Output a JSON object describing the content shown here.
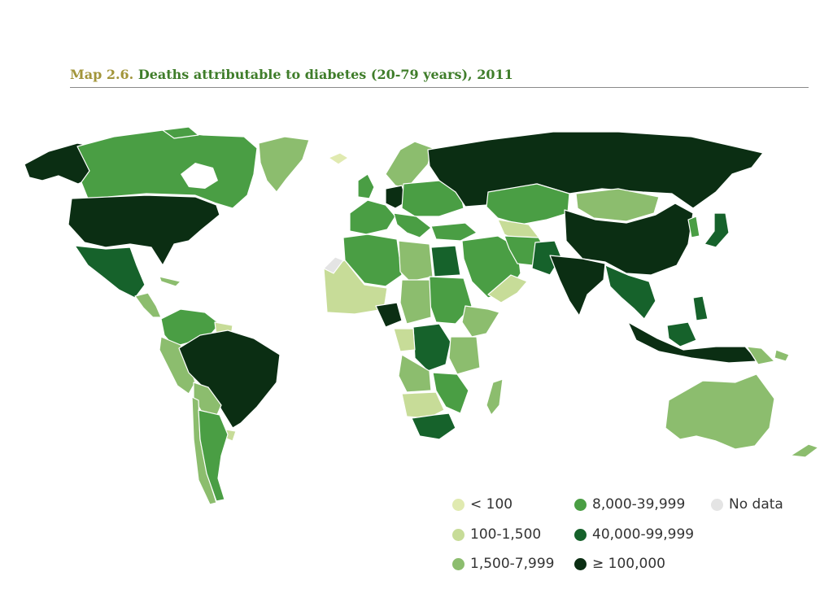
{
  "title": {
    "prefix": "Map 2.6.",
    "text": "Deaths attributable to diabetes (20-79 years), 2011"
  },
  "colors": {
    "lt100": "#e0eab0",
    "c100_1500": "#c7dc98",
    "c1500_7999": "#8cbd6e",
    "c8000_39999": "#4a9e44",
    "c40000_99999": "#16622b",
    "c100000": "#0b2e13",
    "nodata": "#e4e4e4",
    "border": "#ffffff"
  },
  "legend": [
    {
      "label": "< 100",
      "color": "#e0eab0"
    },
    {
      "label": "100-1,500",
      "color": "#c7dc98"
    },
    {
      "label": "1,500-7,999",
      "color": "#8cbd6e"
    },
    {
      "label": "8,000-39,999",
      "color": "#4a9e44"
    },
    {
      "label": "40,000-99,999",
      "color": "#16622b"
    },
    {
      "label": "≥ 100,000",
      "color": "#0b2e13"
    },
    {
      "label": "No data",
      "color": "#e4e4e4"
    }
  ]
}
